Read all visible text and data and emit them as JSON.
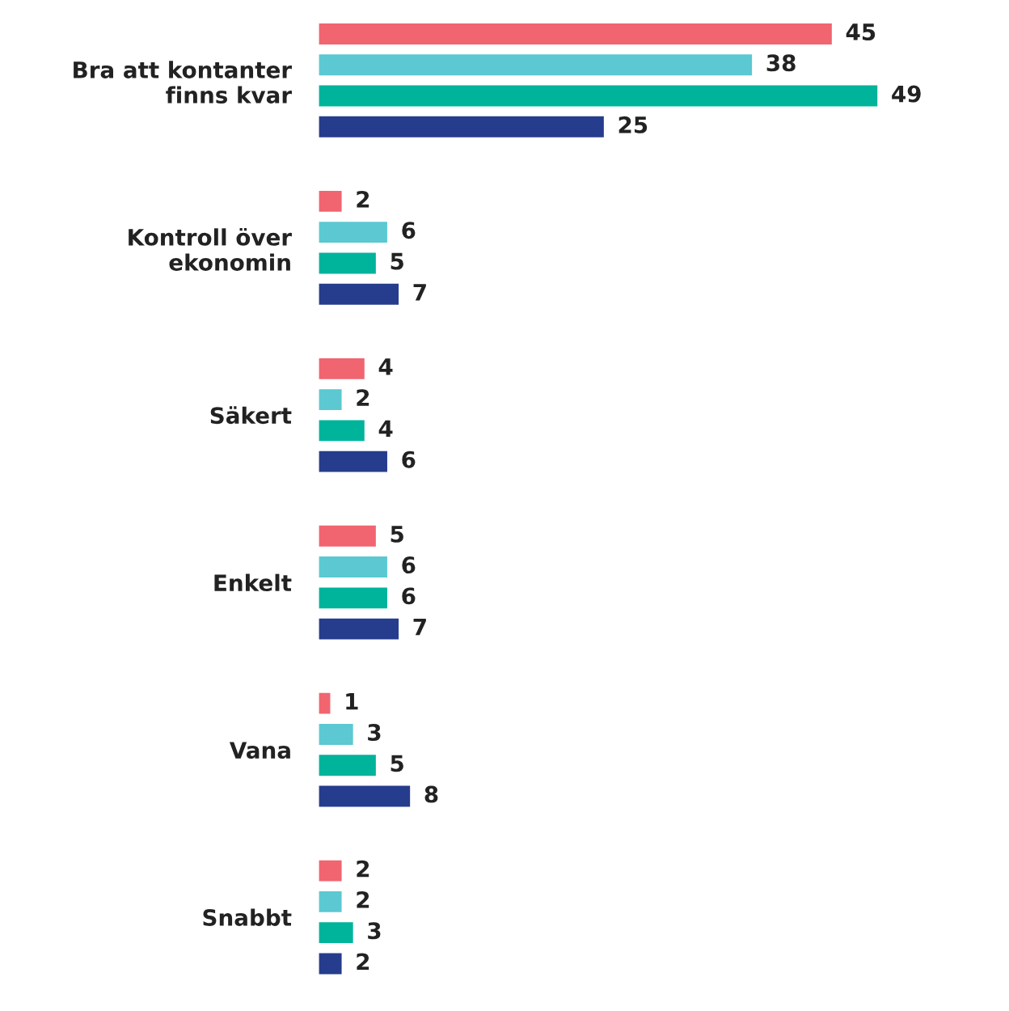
{
  "chart_data": {
    "type": "bar",
    "orientation": "horizontal",
    "data_labels": true,
    "grid": false,
    "categories": [
      "Bra att kontanter\nfinns kvar",
      "Kontroll över\nekonomin",
      "Säkert",
      "Enkelt",
      "Vana",
      "Snabbt"
    ],
    "series": [
      {
        "color": "#f0656f",
        "values": [
          45,
          2,
          4,
          5,
          1,
          2
        ]
      },
      {
        "color": "#5bc8d2",
        "values": [
          38,
          6,
          2,
          6,
          3,
          2
        ]
      },
      {
        "color": "#00b39b",
        "values": [
          49,
          5,
          4,
          6,
          5,
          3
        ]
      },
      {
        "color": "#263c8c",
        "values": [
          25,
          7,
          6,
          7,
          8,
          2
        ]
      }
    ]
  }
}
